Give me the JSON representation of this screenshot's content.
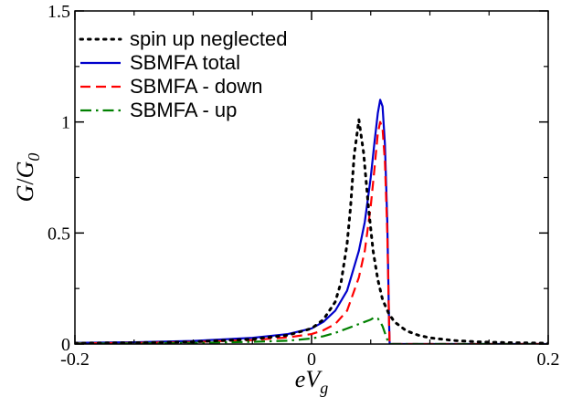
{
  "chart_data": {
    "type": "line",
    "title": "",
    "xlabel": "eV_g",
    "ylabel": "G/G_0",
    "xlim": [
      -0.2,
      0.2
    ],
    "ylim": [
      0,
      1.5
    ],
    "x_ticks": [
      -0.2,
      0,
      0.2
    ],
    "x_tick_labels": [
      "-0.2",
      "0",
      "0.2"
    ],
    "x_minor_ticks": [
      -0.15,
      -0.1,
      -0.05,
      0.05,
      0.1,
      0.15
    ],
    "y_ticks": [
      0,
      0.5,
      1,
      1.5
    ],
    "y_tick_labels": [
      "0",
      "0.5",
      "1",
      "1.5"
    ],
    "y_minor_ticks": [
      0.25,
      0.75,
      1.25
    ],
    "grid": false,
    "legend_position": "top-left",
    "series": [
      {
        "name": "spin up neglected",
        "color": "#000000",
        "style": "dotted",
        "x": [
          -0.2,
          -0.15,
          -0.1,
          -0.05,
          -0.02,
          0.0,
          0.01,
          0.02,
          0.025,
          0.03,
          0.033,
          0.036,
          0.04,
          0.044,
          0.048,
          0.052,
          0.056,
          0.06,
          0.065,
          0.07,
          0.08,
          0.09,
          0.1,
          0.12,
          0.14,
          0.16,
          0.18,
          0.2
        ],
        "y": [
          0.004,
          0.006,
          0.01,
          0.022,
          0.04,
          0.07,
          0.11,
          0.19,
          0.28,
          0.45,
          0.62,
          0.85,
          1.01,
          0.86,
          0.62,
          0.42,
          0.29,
          0.2,
          0.14,
          0.1,
          0.06,
          0.04,
          0.028,
          0.016,
          0.01,
          0.007,
          0.005,
          0.004
        ]
      },
      {
        "name": "SBMFA total",
        "color": "#0000cc",
        "style": "solid",
        "x": [
          -0.2,
          -0.15,
          -0.1,
          -0.05,
          -0.02,
          0.0,
          0.01,
          0.02,
          0.03,
          0.04,
          0.045,
          0.05,
          0.053,
          0.056,
          0.058,
          0.06,
          0.062,
          0.064,
          0.0655,
          0.066,
          0.07,
          0.1,
          0.15,
          0.2
        ],
        "y": [
          0.005,
          0.008,
          0.014,
          0.028,
          0.045,
          0.07,
          0.1,
          0.15,
          0.24,
          0.42,
          0.55,
          0.75,
          0.9,
          1.04,
          1.1,
          1.07,
          0.9,
          0.55,
          0.1,
          0.0,
          0.0,
          0.0,
          0.0,
          0.0
        ]
      },
      {
        "name": "SBMFA - down",
        "color": "#ff0000",
        "style": "dashed",
        "x": [
          -0.2,
          -0.15,
          -0.1,
          -0.05,
          -0.02,
          0.0,
          0.01,
          0.02,
          0.03,
          0.04,
          0.045,
          0.05,
          0.053,
          0.056,
          0.058,
          0.06,
          0.062,
          0.064,
          0.0655,
          0.066,
          0.07,
          0.1,
          0.15,
          0.2
        ],
        "y": [
          0.003,
          0.005,
          0.009,
          0.018,
          0.03,
          0.045,
          0.062,
          0.09,
          0.15,
          0.3,
          0.42,
          0.62,
          0.78,
          0.95,
          1.0,
          0.97,
          0.82,
          0.5,
          0.1,
          0.0,
          0.0,
          0.0,
          0.0,
          0.0
        ]
      },
      {
        "name": "SBMFA - up",
        "color": "#008000",
        "style": "dashdot",
        "x": [
          -0.2,
          -0.15,
          -0.1,
          -0.05,
          -0.02,
          0.0,
          0.01,
          0.02,
          0.03,
          0.04,
          0.045,
          0.05,
          0.053,
          0.056,
          0.058,
          0.06,
          0.062,
          0.064,
          0.066,
          0.07,
          0.1,
          0.15,
          0.2
        ],
        "y": [
          0.002,
          0.003,
          0.005,
          0.01,
          0.015,
          0.025,
          0.035,
          0.05,
          0.07,
          0.09,
          0.1,
          0.11,
          0.12,
          0.115,
          0.1,
          0.08,
          0.05,
          0.02,
          0.0,
          0.0,
          0.0,
          0.0,
          0.0
        ]
      }
    ]
  }
}
